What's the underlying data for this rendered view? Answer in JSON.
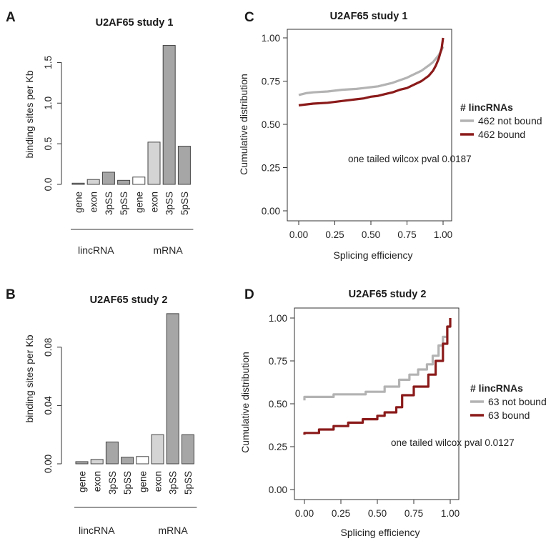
{
  "figure": {
    "panels": [
      "A",
      "B",
      "C",
      "D"
    ]
  },
  "colors": {
    "not_bound": "#b3b3b3",
    "bound": "#8b1a1a",
    "bar_edge": "#444444"
  },
  "chart_data": [
    {
      "id": "A",
      "type": "bar",
      "title": "U2AF65 study 1",
      "ylabel": "binding sites per Kb",
      "categories": [
        "gene",
        "exon",
        "3pSS",
        "5pSS",
        "gene",
        "exon",
        "3pSS",
        "5pSS"
      ],
      "groups": [
        {
          "label": "lincRNA",
          "categories": [
            0,
            1,
            2,
            3
          ]
        },
        {
          "label": "mRNA",
          "categories": [
            4,
            5,
            6,
            7
          ]
        }
      ],
      "values": [
        0.015,
        0.06,
        0.15,
        0.05,
        0.09,
        0.52,
        1.71,
        0.47
      ],
      "fills": [
        "#a6a6a6",
        "#d4d4d4",
        "#a6a6a6",
        "#a6a6a6",
        "#ffffff",
        "#d4d4d4",
        "#a6a6a6",
        "#a6a6a6"
      ],
      "yticks": [
        0.0,
        0.5,
        1.0,
        1.5
      ],
      "ytick_labels": [
        "0.0",
        "0.5",
        "1.0",
        "1.5"
      ],
      "ylim": [
        0,
        1.75
      ]
    },
    {
      "id": "B",
      "type": "bar",
      "title": "U2AF65 study 2",
      "ylabel": "binding sites per Kb",
      "categories": [
        "gene",
        "exon",
        "3pSS",
        "5pSS",
        "gene",
        "exon",
        "3pSS",
        "5pSS"
      ],
      "groups": [
        {
          "label": "lincRNA",
          "categories": [
            0,
            1,
            2,
            3
          ]
        },
        {
          "label": "mRNA",
          "categories": [
            4,
            5,
            6,
            7
          ]
        }
      ],
      "values": [
        0.0015,
        0.003,
        0.015,
        0.0045,
        0.005,
        0.02,
        0.103,
        0.02
      ],
      "fills": [
        "#a6a6a6",
        "#d4d4d4",
        "#a6a6a6",
        "#a6a6a6",
        "#ffffff",
        "#d4d4d4",
        "#a6a6a6",
        "#a6a6a6"
      ],
      "yticks": [
        0.0,
        0.04,
        0.08
      ],
      "ytick_labels": [
        "0.00",
        "0.04",
        "0.08"
      ],
      "ylim": [
        0,
        0.1
      ]
    },
    {
      "id": "C",
      "type": "line",
      "title": "U2AF65 study 1",
      "xlabel": "Splicing efficiency",
      "ylabel": "Cumulative distribution",
      "xlim": [
        0,
        1
      ],
      "ylim": [
        0,
        1
      ],
      "xticks": [
        "0.00",
        "0.25",
        "0.50",
        "0.75",
        "1.00"
      ],
      "yticks": [
        "0.00",
        "0.25",
        "0.50",
        "0.75",
        "1.00"
      ],
      "legend_title": "# lincRNAs",
      "annotation": "one tailed wilcox pval 0.0187",
      "series": [
        {
          "name": "462 not bound",
          "color": "#b3b3b3",
          "x": [
            0.0,
            0.05,
            0.1,
            0.2,
            0.3,
            0.4,
            0.5,
            0.55,
            0.6,
            0.65,
            0.7,
            0.75,
            0.8,
            0.85,
            0.9,
            0.93,
            0.95,
            0.97,
            0.99,
            1.0
          ],
          "y": [
            0.67,
            0.68,
            0.685,
            0.69,
            0.7,
            0.705,
            0.715,
            0.72,
            0.73,
            0.74,
            0.755,
            0.77,
            0.79,
            0.81,
            0.84,
            0.86,
            0.88,
            0.9,
            0.93,
            0.95
          ]
        },
        {
          "name": "462 bound",
          "color": "#8b1a1a",
          "x": [
            0.0,
            0.1,
            0.2,
            0.3,
            0.4,
            0.45,
            0.5,
            0.55,
            0.6,
            0.65,
            0.7,
            0.75,
            0.8,
            0.85,
            0.9,
            0.93,
            0.95,
            0.97,
            0.99,
            1.0
          ],
          "y": [
            0.61,
            0.62,
            0.625,
            0.635,
            0.645,
            0.65,
            0.66,
            0.665,
            0.675,
            0.685,
            0.7,
            0.71,
            0.73,
            0.75,
            0.78,
            0.81,
            0.84,
            0.88,
            0.94,
            1.0
          ]
        }
      ]
    },
    {
      "id": "D",
      "type": "line",
      "title": "U2AF65 study 2",
      "xlabel": "Splicing efficiency",
      "ylabel": "Cumulative distribution",
      "xlim": [
        0,
        1
      ],
      "ylim": [
        0,
        1
      ],
      "xticks": [
        "0.00",
        "0.25",
        "0.50",
        "0.75",
        "1.00"
      ],
      "yticks": [
        "0.00",
        "0.25",
        "0.50",
        "0.75",
        "1.00"
      ],
      "legend_title": "# lincRNAs",
      "annotation": "one tailed wilcox pval 0.0127",
      "series": [
        {
          "name": "63 not bound",
          "color": "#b3b3b3",
          "x": [
            0.0,
            0.0,
            0.2,
            0.2,
            0.42,
            0.42,
            0.55,
            0.55,
            0.65,
            0.65,
            0.72,
            0.72,
            0.78,
            0.78,
            0.84,
            0.84,
            0.88,
            0.88,
            0.92,
            0.92,
            0.95,
            0.95,
            0.98,
            0.98,
            1.0,
            1.0
          ],
          "y": [
            0.52,
            0.54,
            0.54,
            0.555,
            0.555,
            0.57,
            0.57,
            0.6,
            0.6,
            0.64,
            0.64,
            0.67,
            0.67,
            0.7,
            0.7,
            0.73,
            0.73,
            0.78,
            0.78,
            0.84,
            0.84,
            0.89,
            0.89,
            0.95,
            0.95,
            1.0
          ]
        },
        {
          "name": "63 bound",
          "color": "#8b1a1a",
          "x": [
            0.0,
            0.0,
            0.1,
            0.1,
            0.2,
            0.2,
            0.3,
            0.3,
            0.4,
            0.4,
            0.5,
            0.5,
            0.55,
            0.55,
            0.63,
            0.63,
            0.67,
            0.67,
            0.75,
            0.75,
            0.85,
            0.85,
            0.9,
            0.9,
            0.95,
            0.95,
            0.98,
            0.98,
            1.0,
            1.0
          ],
          "y": [
            0.32,
            0.33,
            0.33,
            0.35,
            0.35,
            0.37,
            0.37,
            0.39,
            0.39,
            0.41,
            0.41,
            0.43,
            0.43,
            0.45,
            0.45,
            0.48,
            0.48,
            0.55,
            0.55,
            0.6,
            0.6,
            0.67,
            0.67,
            0.75,
            0.75,
            0.85,
            0.85,
            0.95,
            0.95,
            1.0
          ]
        }
      ]
    }
  ]
}
